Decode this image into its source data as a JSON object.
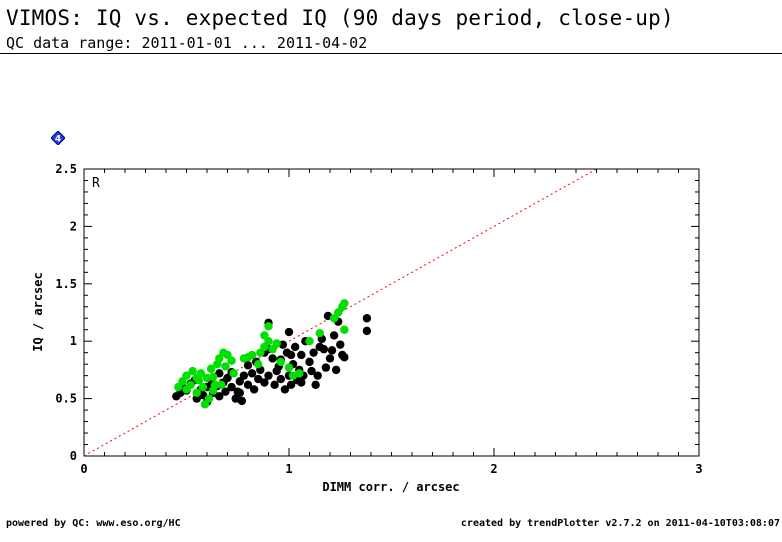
{
  "header": {
    "title": "VIMOS: IQ vs. expected IQ (90 days period, close-up)",
    "subtitle": "QC data range: 2011-01-01 ... 2011-04-02"
  },
  "badge": {
    "label": "4",
    "color": "#1f3fd6"
  },
  "footer": {
    "left": "powered by QC: www.eso.org/HC",
    "right": "created by trendPlotter v2.7.2 on 2011-04-10T03:08:07"
  },
  "chart_data": {
    "type": "scatter",
    "panel_label": "R",
    "xlabel": "DIMM corr. / arcsec",
    "ylabel": "IQ / arcsec",
    "xlim": [
      0,
      3
    ],
    "ylim": [
      0,
      2.5
    ],
    "xticks": [
      "0",
      "1",
      "2",
      "3"
    ],
    "yticks": [
      "0",
      "0.5",
      "1",
      "1.5",
      "2",
      "2.5"
    ],
    "reference_line": {
      "style": "dotted",
      "color": "#ff0000",
      "x": [
        0,
        2.5
      ],
      "y": [
        0,
        2.5
      ]
    },
    "series": [
      {
        "color": "#000000",
        "points": [
          [
            0.45,
            0.52
          ],
          [
            0.47,
            0.55
          ],
          [
            0.48,
            0.6
          ],
          [
            0.5,
            0.57
          ],
          [
            0.52,
            0.63
          ],
          [
            0.55,
            0.5
          ],
          [
            0.57,
            0.58
          ],
          [
            0.58,
            0.53
          ],
          [
            0.6,
            0.6
          ],
          [
            0.6,
            0.47
          ],
          [
            0.62,
            0.66
          ],
          [
            0.63,
            0.55
          ],
          [
            0.65,
            0.61
          ],
          [
            0.66,
            0.52
          ],
          [
            0.68,
            0.64
          ],
          [
            0.7,
            0.68
          ],
          [
            0.72,
            0.6
          ],
          [
            0.74,
            0.5
          ],
          [
            0.75,
            0.56
          ],
          [
            0.76,
            0.65
          ],
          [
            0.78,
            0.7
          ],
          [
            0.8,
            0.62
          ],
          [
            0.82,
            0.72
          ],
          [
            0.83,
            0.58
          ],
          [
            0.84,
            0.82
          ],
          [
            0.85,
            0.67
          ],
          [
            0.86,
            0.75
          ],
          [
            0.88,
            0.64
          ],
          [
            0.9,
            0.93
          ],
          [
            0.9,
            0.7
          ],
          [
            0.92,
            0.85
          ],
          [
            0.93,
            0.62
          ],
          [
            0.95,
            0.78
          ],
          [
            0.96,
            0.67
          ],
          [
            0.97,
            0.97
          ],
          [
            0.98,
            0.58
          ],
          [
            0.99,
            0.9
          ],
          [
            1.0,
            0.7
          ],
          [
            1.0,
            1.08
          ],
          [
            1.01,
            0.62
          ],
          [
            1.02,
            0.8
          ],
          [
            1.03,
            0.95
          ],
          [
            1.04,
            0.66
          ],
          [
            1.05,
            0.75
          ],
          [
            1.06,
            0.88
          ],
          [
            1.07,
            0.7
          ],
          [
            1.08,
            1.0
          ],
          [
            1.1,
            0.82
          ],
          [
            1.12,
            0.9
          ],
          [
            1.13,
            0.62
          ],
          [
            1.14,
            0.7
          ],
          [
            1.15,
            0.95
          ],
          [
            1.16,
            1.02
          ],
          [
            1.18,
            0.77
          ],
          [
            1.19,
            1.22
          ],
          [
            1.2,
            0.85
          ],
          [
            1.21,
            0.92
          ],
          [
            1.22,
            1.05
          ],
          [
            1.23,
            0.75
          ],
          [
            1.24,
            1.17
          ],
          [
            1.25,
            0.97
          ],
          [
            1.26,
            0.88
          ],
          [
            1.38,
            1.2
          ],
          [
            1.38,
            1.09
          ],
          [
            0.72,
            0.73
          ],
          [
            0.76,
            0.55
          ],
          [
            0.8,
            0.79
          ],
          [
            0.9,
            1.16
          ],
          [
            0.94,
            0.74
          ],
          [
            0.96,
            0.84
          ],
          [
            0.77,
            0.48
          ],
          [
            0.88,
            0.9
          ],
          [
            1.06,
            0.64
          ],
          [
            1.11,
            0.74
          ],
          [
            0.54,
            0.66
          ],
          [
            0.66,
            0.72
          ],
          [
            0.69,
            0.56
          ],
          [
            1.17,
            0.93
          ],
          [
            1.27,
            0.86
          ],
          [
            1.01,
            0.88
          ]
        ]
      },
      {
        "color": "#00e000",
        "points": [
          [
            0.46,
            0.6
          ],
          [
            0.48,
            0.65
          ],
          [
            0.5,
            0.58
          ],
          [
            0.5,
            0.7
          ],
          [
            0.52,
            0.62
          ],
          [
            0.53,
            0.74
          ],
          [
            0.55,
            0.55
          ],
          [
            0.56,
            0.66
          ],
          [
            0.57,
            0.72
          ],
          [
            0.58,
            0.6
          ],
          [
            0.6,
            0.68
          ],
          [
            0.61,
            0.5
          ],
          [
            0.62,
            0.76
          ],
          [
            0.63,
            0.57
          ],
          [
            0.64,
            0.62
          ],
          [
            0.65,
            0.8
          ],
          [
            0.66,
            0.85
          ],
          [
            0.68,
            0.9
          ],
          [
            0.69,
            0.78
          ],
          [
            0.7,
            0.88
          ],
          [
            0.72,
            0.83
          ],
          [
            0.73,
            0.72
          ],
          [
            0.78,
            0.85
          ],
          [
            0.8,
            0.86
          ],
          [
            0.82,
            0.88
          ],
          [
            0.86,
            0.9
          ],
          [
            0.88,
            0.95
          ],
          [
            0.9,
            1.0
          ],
          [
            0.92,
            0.93
          ],
          [
            0.94,
            0.98
          ],
          [
            0.96,
            0.82
          ],
          [
            1.0,
            0.77
          ],
          [
            1.02,
            0.7
          ],
          [
            1.05,
            0.72
          ],
          [
            1.1,
            1.0
          ],
          [
            1.15,
            1.07
          ],
          [
            1.22,
            1.2
          ],
          [
            1.24,
            1.25
          ],
          [
            1.26,
            1.3
          ],
          [
            1.27,
            1.33
          ],
          [
            1.27,
            1.1
          ],
          [
            0.9,
            1.13
          ],
          [
            0.85,
            0.8
          ],
          [
            0.88,
            1.05
          ],
          [
            0.59,
            0.45
          ],
          [
            0.55,
            0.68
          ],
          [
            0.67,
            0.62
          ],
          [
            0.63,
            0.69
          ]
        ]
      }
    ]
  }
}
